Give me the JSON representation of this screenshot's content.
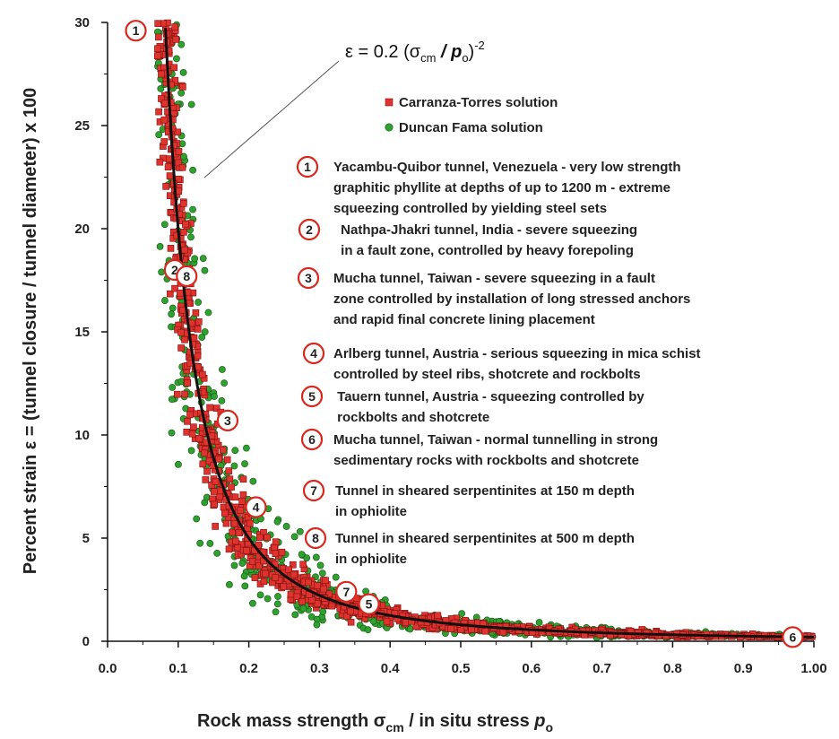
{
  "chart_data": {
    "type": "scatter",
    "xlabel_main": "Rock mass strength σ",
    "xlabel_sub1": "cm",
    "xlabel_mid": " / in situ stress ",
    "xlabel_p": "p",
    "xlabel_sub2": "o",
    "ylabel": "Percent strain ε = (tunnel closure / tunnel diameter) x 100",
    "xlim": [
      0.0,
      1.0
    ],
    "ylim": [
      0,
      30
    ],
    "x_ticks": [
      "0.0",
      "0.1",
      "0.2",
      "0.3",
      "0.4",
      "0.5",
      "0.6",
      "0.7",
      "0.8",
      "0.9",
      "1.00"
    ],
    "x_tick_values": [
      0,
      0.1,
      0.2,
      0.3,
      0.4,
      0.5,
      0.6,
      0.7,
      0.8,
      0.9,
      1.0
    ],
    "y_ticks": [
      "0",
      "5",
      "10",
      "15",
      "20",
      "25",
      "30"
    ],
    "y_tick_values": [
      0,
      5,
      10,
      15,
      20,
      25,
      30
    ],
    "grid": false,
    "equation": {
      "prefix": "ε = 0.2 (σ",
      "sub1": "cm",
      "mid": " / ",
      "p": "p",
      "sub2": "o",
      "close": ")",
      "exp": "-2"
    },
    "curve": {
      "coefficient": 0.2,
      "exponent": -2,
      "x_range": [
        0.082,
        1.0
      ]
    },
    "series": [
      {
        "name": "Carranza-Torres solution",
        "marker": "square",
        "color": "#e0332e",
        "edge": "#7a1010",
        "count": 1100,
        "spread": 0.16
      },
      {
        "name": "Duncan Fama solution",
        "marker": "circle",
        "color": "#2fa12f",
        "edge": "#145214",
        "count": 700,
        "spread": 0.3
      }
    ],
    "legend_position": "top-right",
    "case_markers": [
      {
        "label": "1",
        "x": 0.04,
        "y": 29.6
      },
      {
        "label": "2",
        "x": 0.095,
        "y": 18.0
      },
      {
        "label": "8",
        "x": 0.112,
        "y": 17.7
      },
      {
        "label": "3",
        "x": 0.17,
        "y": 10.7
      },
      {
        "label": "4",
        "x": 0.21,
        "y": 6.5
      },
      {
        "label": "7",
        "x": 0.338,
        "y": 2.4
      },
      {
        "label": "5",
        "x": 0.37,
        "y": 1.8
      },
      {
        "label": "6",
        "x": 0.97,
        "y": 0.2
      }
    ],
    "annotations": [
      {
        "num": "1",
        "lines": [
          "Yacambu-Quibor tunnel, Venezuela - very low strength",
          "graphitic phyllite at depths of up to 1200 m - extreme",
          "squeezing controlled by yielding steel sets"
        ]
      },
      {
        "num": "2",
        "lines": [
          " Nathpa-Jhakri tunnel, India - severe squeezing",
          " in a fault zone, controlled by heavy forepoling"
        ]
      },
      {
        "num": "3",
        "lines": [
          "Mucha tunnel, Taiwan - severe squeezing in a fault",
          "zone controlled by installation of long stressed anchors",
          "and rapid final concrete lining placement"
        ]
      },
      {
        "num": "4",
        "lines": [
          "Arlberg tunnel, Austria - serious squeezing in mica schist",
          "controlled by steel ribs, shotcrete and rockbolts"
        ]
      },
      {
        "num": "5",
        "lines": [
          " Tauern tunnel, Austria - squeezing controlled by",
          " rockbolts and shotcrete"
        ]
      },
      {
        "num": "6",
        "lines": [
          "Mucha tunnel, Taiwan - normal tunnelling in strong",
          "sedimentary rocks with rockbolts and shotcrete"
        ]
      },
      {
        "num": "7",
        "lines": [
          "Tunnel in sheared serpentinites at 150 m depth",
          "in ophiolite"
        ]
      },
      {
        "num": "8",
        "lines": [
          "Tunnel in sheared serpentinites at 500 m depth",
          "in ophiolite"
        ]
      }
    ]
  },
  "colors": {
    "axis": "#111111",
    "curve": "#111111",
    "marker_ring": "#d8281e",
    "marker_fill": "#ffffff"
  }
}
